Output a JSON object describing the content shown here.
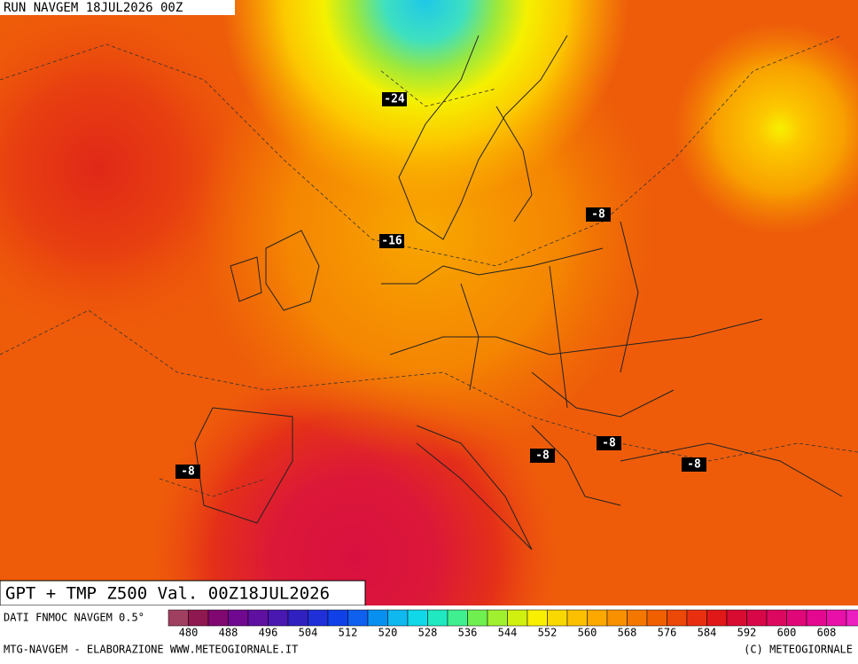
{
  "header": {
    "run": "RUN NAVGEM 18JUL2026 00Z"
  },
  "labels": [
    "-24",
    "-16",
    "-8",
    "-8",
    "-8",
    "-8",
    "-8"
  ],
  "product": "GPT + TMP Z500 Val. 00Z18JUL2026",
  "source": "DATI FNMOC NAVGEM 0.5°",
  "scale": [
    "480",
    "488",
    "496",
    "504",
    "512",
    "520",
    "528",
    "536",
    "544",
    "552",
    "560",
    "568",
    "576",
    "584",
    "592",
    "600",
    "608"
  ],
  "footer": {
    "left": "MTG-NAVGEM - ELABORAZIONE WWW.METEOGIORNALE.IT",
    "right": "(C) METEOGIORNALE"
  }
}
